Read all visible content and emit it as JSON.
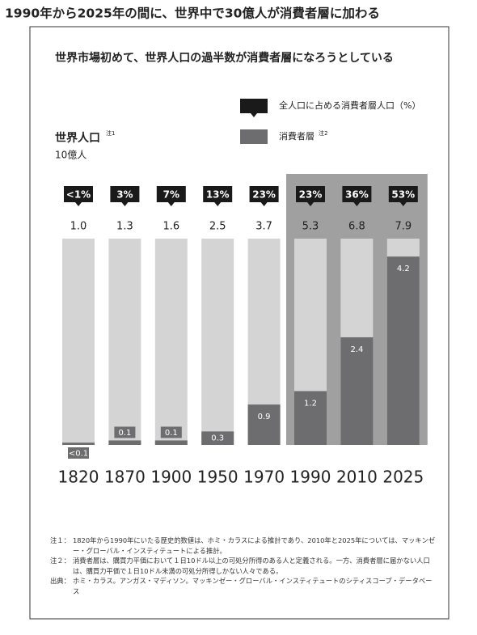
{
  "title": "1990年から2025年の間に、世界中で30億人が消費者層に加わる",
  "chart_data": {
    "type": "bar",
    "title": "世界市場初めて、世界人口の過半数が消費者層になろうとしている",
    "y_label": "世界人口",
    "y_label_note": "注1",
    "y_unit": "10億人",
    "categories": [
      "1820",
      "1870",
      "1900",
      "1950",
      "1970",
      "1990",
      "2010",
      "2025"
    ],
    "ylim": [
      0,
      4.6
    ],
    "totals": {
      "color": "#d4d4d4",
      "values": [
        1.0,
        1.3,
        1.6,
        2.5,
        3.7,
        5.3,
        6.8,
        7.9
      ],
      "value_labels": [
        "1.0",
        "1.3",
        "1.6",
        "2.5",
        "3.7",
        "5.3",
        "6.8",
        "7.9"
      ]
    },
    "share": {
      "name": "全人口に占める消費者層人口（%）",
      "color": "#1a1a1a",
      "values": [
        0.5,
        3,
        7,
        13,
        23,
        23,
        36,
        53
      ],
      "value_labels": [
        "<1%",
        "3%",
        "7%",
        "13%",
        "23%",
        "23%",
        "36%",
        "53%"
      ]
    },
    "series": [
      {
        "name": "消費者層",
        "note": "注2",
        "color": "#6d6d6f",
        "values": [
          0.05,
          0.1,
          0.1,
          0.3,
          0.9,
          1.2,
          2.4,
          4.2
        ],
        "value_labels": [
          "<0.1",
          "0.1",
          "0.1",
          "0.3",
          "0.9",
          "1.2",
          "2.4",
          "4.2"
        ]
      }
    ]
  },
  "notes": [
    {
      "label": "注１：",
      "text": "1820年から1990年にいたる歴史的数値は、ホミ・カラスによる推計であり、2010年と2025年については、マッキンゼー・グローバル・インスティテュートによる推計。"
    },
    {
      "label": "注２：",
      "text": "消費者層は、購買力平価において１日10ドル以上の可処分所得のある人と定義される。一方、消費者層に届かない人口は、購買力平価で１日10ドル未満の可処分所得しかない人々である。"
    },
    {
      "label": "出典：",
      "text": "ホミ・カラス。アンガス・マディソン。マッキンゼー・グローバル・インスティテュートのシティスコープ・データベース"
    }
  ]
}
